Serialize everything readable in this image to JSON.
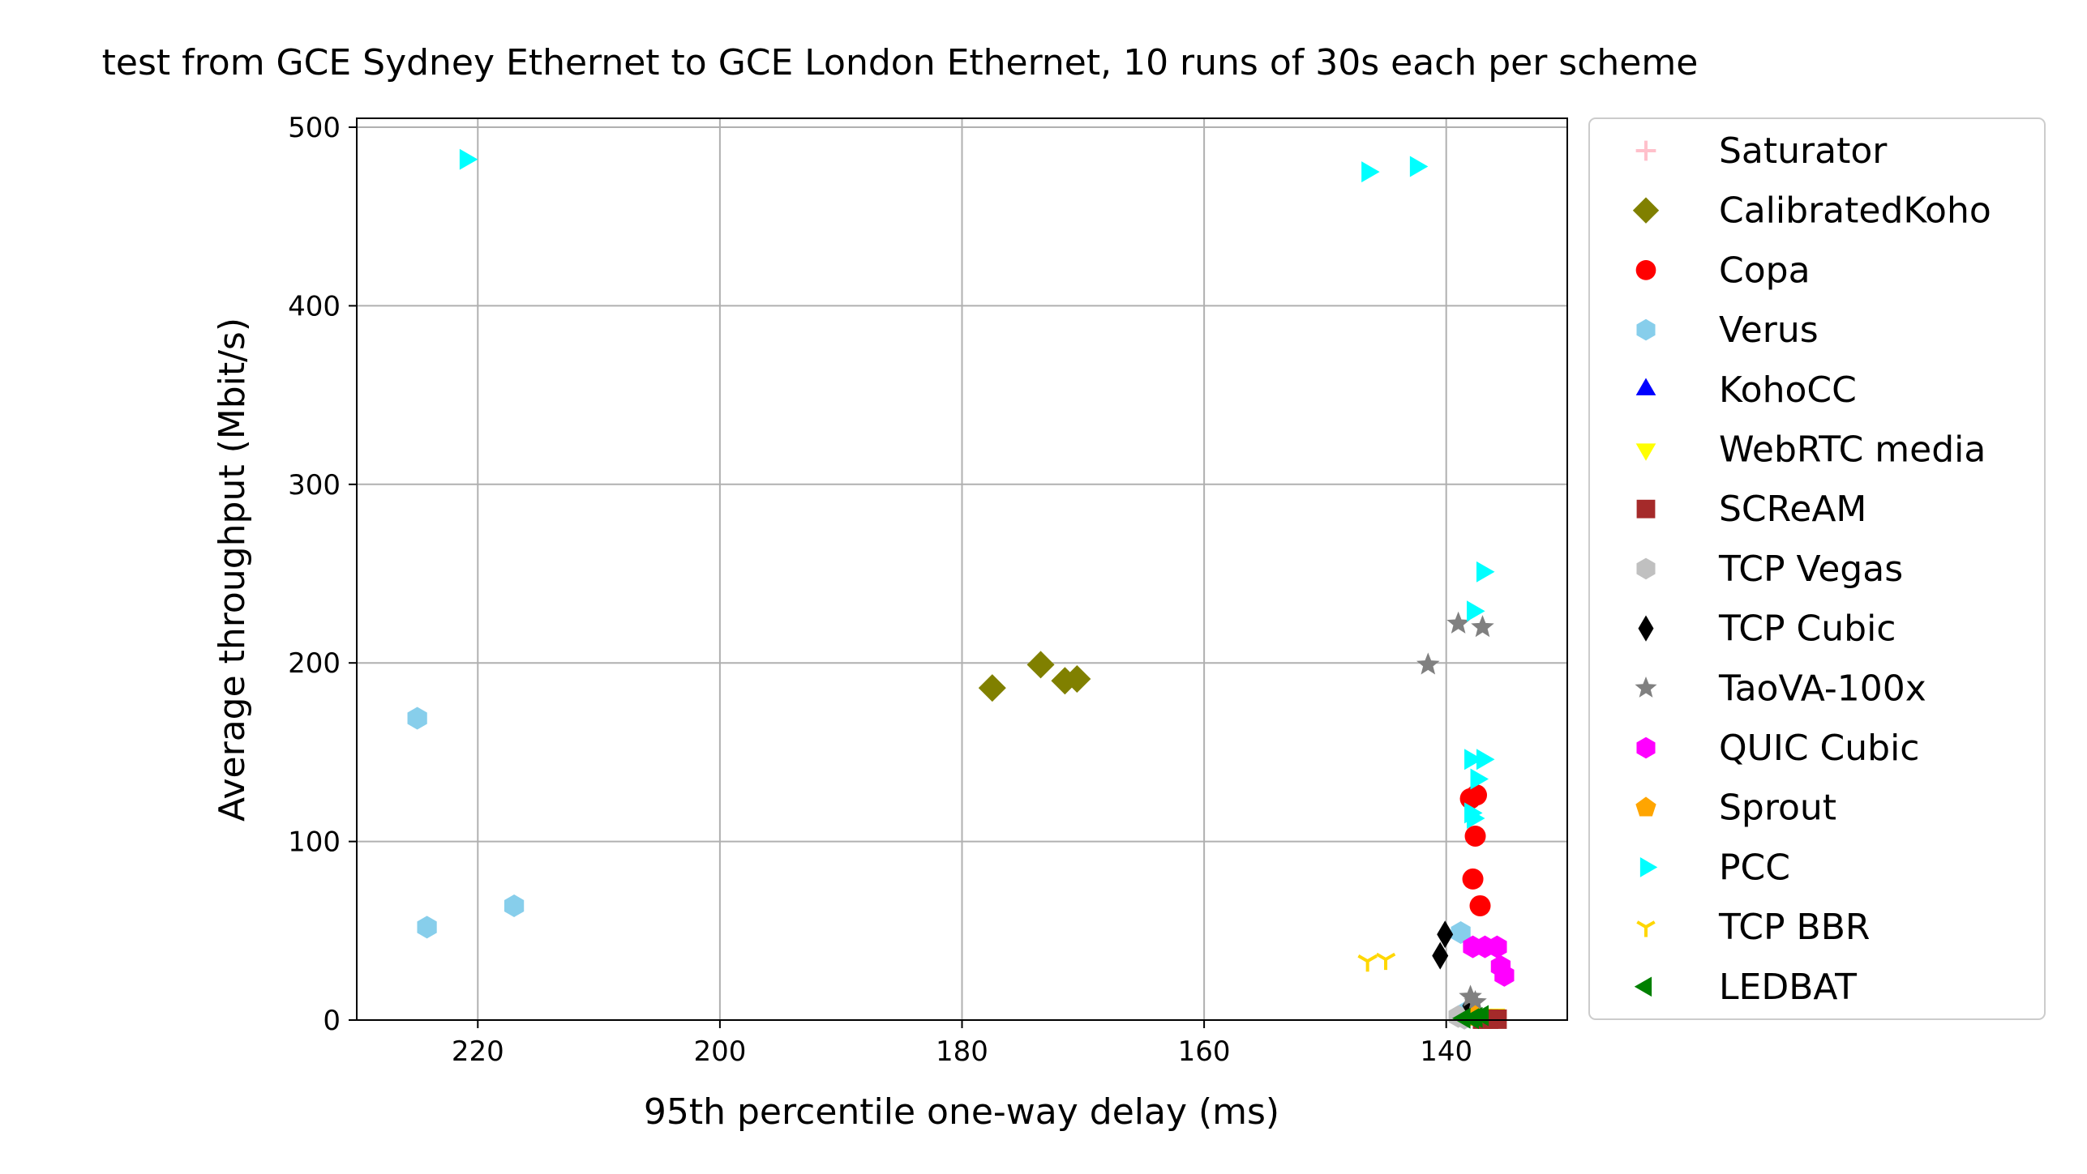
{
  "chart_data": {
    "type": "scatter",
    "title": "test from GCE Sydney Ethernet to GCE London Ethernet, 10 runs of 30s each per scheme",
    "xlabel": "95th percentile one-way delay (ms)",
    "ylabel": "Average throughput (Mbit/s)",
    "xlim": [
      230,
      130
    ],
    "ylim": [
      0,
      505
    ],
    "x_inverted": true,
    "xticks": [
      220,
      200,
      180,
      160,
      140
    ],
    "yticks": [
      0,
      100,
      200,
      300,
      400,
      500
    ],
    "grid": true,
    "legend_position": "outside-right",
    "series": [
      {
        "name": "Saturator",
        "marker": "plus",
        "color": "#ffc0cb",
        "points": [
          [
            138.2,
            2
          ]
        ]
      },
      {
        "name": "CalibratedKoho",
        "marker": "diamond",
        "color": "#808000",
        "points": [
          [
            177.5,
            186
          ],
          [
            173.5,
            199
          ],
          [
            171.5,
            190
          ],
          [
            170.5,
            191
          ]
        ]
      },
      {
        "name": "Copa",
        "marker": "circle",
        "color": "#ff0000",
        "points": [
          [
            137.5,
            126
          ],
          [
            138,
            124
          ],
          [
            137.6,
            103
          ],
          [
            137.8,
            79
          ],
          [
            137.2,
            64
          ]
        ]
      },
      {
        "name": "Verus",
        "marker": "hexagon",
        "color": "#87ceeb",
        "points": [
          [
            225,
            169
          ],
          [
            224.2,
            52
          ],
          [
            217,
            64
          ],
          [
            138.8,
            49
          ],
          [
            138.2,
            5
          ],
          [
            137.8,
            3
          ]
        ]
      },
      {
        "name": "KohoCC",
        "marker": "triangle-up",
        "color": "#0000ff",
        "points": [
          [
            138,
            1
          ]
        ]
      },
      {
        "name": "WebRTC media",
        "marker": "triangle-down",
        "color": "#ffff00",
        "points": [
          [
            136,
            3
          ],
          [
            137.5,
            2
          ]
        ]
      },
      {
        "name": "SCReAM",
        "marker": "square",
        "color": "#a52a2a",
        "points": [
          [
            135.8,
            0.5
          ],
          [
            136.5,
            0.5
          ],
          [
            137,
            0.5
          ]
        ]
      },
      {
        "name": "TCP Vegas",
        "marker": "hexagon",
        "color": "#c0c0c0",
        "points": [
          [
            138.5,
            1
          ],
          [
            139,
            2
          ]
        ]
      },
      {
        "name": "TCP Cubic",
        "marker": "thin-diamond",
        "color": "#000000",
        "points": [
          [
            140.1,
            48
          ],
          [
            140.5,
            36
          ],
          [
            138,
            8
          ]
        ]
      },
      {
        "name": "TaoVA-100x",
        "marker": "star",
        "color": "#808080",
        "points": [
          [
            141.5,
            199
          ],
          [
            139,
            222
          ],
          [
            137,
            220
          ],
          [
            138,
            13
          ],
          [
            137.6,
            10
          ]
        ]
      },
      {
        "name": "QUIC Cubic",
        "marker": "hexagon",
        "color": "#ff00ff",
        "points": [
          [
            137.8,
            41
          ],
          [
            136.8,
            41
          ],
          [
            135.8,
            41
          ],
          [
            135.5,
            30
          ],
          [
            135.2,
            25
          ]
        ]
      },
      {
        "name": "Sprout",
        "marker": "pentagon",
        "color": "#ffa500",
        "points": [
          [
            137.6,
            2
          ]
        ]
      },
      {
        "name": "PCC",
        "marker": "triangle-right",
        "color": "#00ffff",
        "points": [
          [
            221,
            482
          ],
          [
            146.5,
            475
          ],
          [
            142.5,
            478
          ],
          [
            137,
            251
          ],
          [
            137.8,
            229
          ],
          [
            138,
            146
          ],
          [
            137,
            146
          ],
          [
            137.5,
            135
          ],
          [
            138,
            116
          ],
          [
            137.8,
            113
          ]
        ]
      },
      {
        "name": "TCP BBR",
        "marker": "tri-down",
        "color": "#ffd700",
        "points": [
          [
            146.5,
            33
          ],
          [
            145,
            34
          ]
        ]
      },
      {
        "name": "LEDBAT",
        "marker": "triangle-left",
        "color": "#008000",
        "points": [
          [
            137.5,
            1.5
          ],
          [
            138.5,
            1
          ],
          [
            137,
            2.5
          ],
          [
            137.8,
            0.8
          ]
        ]
      }
    ]
  }
}
